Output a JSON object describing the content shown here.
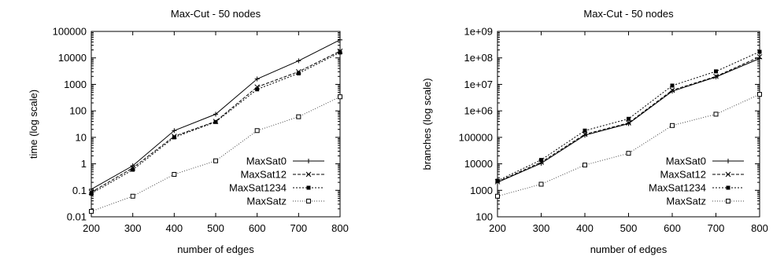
{
  "chart_data": [
    {
      "type": "line",
      "title": "Max-Cut - 50 nodes",
      "xlabel": "number of edges",
      "ylabel": "time (log scale)",
      "yscale": "log",
      "x": [
        200,
        300,
        400,
        500,
        600,
        700,
        800
      ],
      "xlim": [
        200,
        800
      ],
      "ylim": [
        0.01,
        100000
      ],
      "xticks": [
        "200",
        "300",
        "400",
        "500",
        "600",
        "700",
        "800"
      ],
      "yticks": [
        {
          "value": 0.01,
          "label": "0.01"
        },
        {
          "value": 0.1,
          "label": "0.1"
        },
        {
          "value": 1,
          "label": "1"
        },
        {
          "value": 10,
          "label": "10"
        },
        {
          "value": 100,
          "label": "100"
        },
        {
          "value": 1000,
          "label": "1000"
        },
        {
          "value": 10000,
          "label": "10000"
        },
        {
          "value": 100000,
          "label": "100000"
        }
      ],
      "legend_position": "bottom-right",
      "grid": false,
      "series": [
        {
          "name": "MaxSat0",
          "marker": "plus",
          "dash": "solid",
          "values": [
            0.11,
            0.85,
            18,
            75,
            1600,
            7800,
            48000
          ]
        },
        {
          "name": "MaxSat12",
          "marker": "cross",
          "dash": "dashed",
          "values": [
            0.085,
            0.7,
            11,
            40,
            800,
            3000,
            18000
          ]
        },
        {
          "name": "MaxSat1234",
          "marker": "filled-square",
          "dash": "dotted",
          "values": [
            0.075,
            0.6,
            10,
            38,
            650,
            2600,
            16000
          ]
        },
        {
          "name": "MaxSatz",
          "marker": "open-square",
          "dash": "fine-dotted",
          "values": [
            0.016,
            0.06,
            0.4,
            1.3,
            18,
            60,
            340
          ]
        }
      ]
    },
    {
      "type": "line",
      "title": "Max-Cut - 50 nodes",
      "xlabel": "number of edges",
      "ylabel": "branches (log scale)",
      "yscale": "log",
      "x": [
        200,
        300,
        400,
        500,
        600,
        700,
        800
      ],
      "xlim": [
        200,
        800
      ],
      "ylim": [
        100,
        1000000000
      ],
      "xticks": [
        "200",
        "300",
        "400",
        "500",
        "600",
        "700",
        "800"
      ],
      "yticks": [
        {
          "value": 100,
          "label": "100"
        },
        {
          "value": 1000,
          "label": "1000"
        },
        {
          "value": 10000,
          "label": "10000"
        },
        {
          "value": 100000,
          "label": "100000"
        },
        {
          "value": 1000000,
          "label": "1e+06"
        },
        {
          "value": 10000000,
          "label": "1e+07"
        },
        {
          "value": 100000000,
          "label": "1e+08"
        },
        {
          "value": 1000000000,
          "label": "1e+09"
        }
      ],
      "legend_position": "bottom-right",
      "grid": false,
      "series": [
        {
          "name": "MaxSat0",
          "marker": "plus",
          "dash": "solid",
          "values": [
            2000,
            10500,
            120000,
            330000,
            5500000,
            19000000,
            95000000
          ]
        },
        {
          "name": "MaxSat12",
          "marker": "cross",
          "dash": "dashed",
          "values": [
            2100,
            11500,
            130000,
            350000,
            6000000,
            20000000,
            110000000
          ]
        },
        {
          "name": "MaxSat1234",
          "marker": "filled-square",
          "dash": "dotted",
          "values": [
            2300,
            14000,
            180000,
            500000,
            9000000,
            31000000,
            170000000
          ]
        },
        {
          "name": "MaxSatz",
          "marker": "open-square",
          "dash": "fine-dotted",
          "values": [
            600,
            1700,
            9000,
            25000,
            280000,
            750000,
            4200000
          ]
        }
      ]
    }
  ]
}
